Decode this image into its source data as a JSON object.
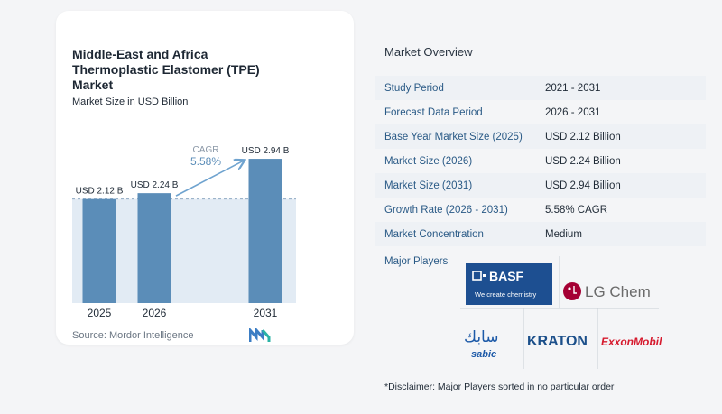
{
  "header": {
    "title": "Middle-East and Africa Thermoplastic Elastomer (TPE) Market",
    "subtitle": "Market Size in USD Billion"
  },
  "source": "Source: Mordor Intelligence",
  "chart_data": {
    "type": "bar",
    "categories": [
      "2025",
      "2026",
      "2031"
    ],
    "values": [
      2.12,
      2.24,
      2.94
    ],
    "data_labels": [
      "USD 2.12 B",
      "USD 2.24 B",
      "USD 2.94 B"
    ],
    "cagr_label": "CAGR",
    "cagr_value": "5.58%",
    "bar_color": "#5b8db8",
    "highlight_color": "#d6e3ef"
  },
  "overview": {
    "title": "Market Overview",
    "rows": [
      {
        "key": "Study Period",
        "value": "2021 - 2031"
      },
      {
        "key": "Forecast Data Period",
        "value": "2026 - 2031"
      },
      {
        "key": "Base Year Market Size (2025)",
        "value": "USD 2.12 Billion"
      },
      {
        "key": "Market Size (2026)",
        "value": "USD 2.24 Billion"
      },
      {
        "key": "Market Size (2031)",
        "value": "USD 2.94 Billion"
      },
      {
        "key": "Growth Rate (2026 - 2031)",
        "value": "5.58% CAGR"
      },
      {
        "key": "Market Concentration",
        "value": "Medium"
      }
    ],
    "players_label": "Major Players",
    "disclaimer": "*Disclaimer: Major Players sorted in no particular order"
  },
  "players": {
    "basf": "BASF",
    "basf_tagline": "We create chemistry",
    "lgchem": "LG Chem",
    "sabic_arabic": "سابك",
    "sabic": "sabic",
    "kraton": "KRATON",
    "exxon": "ExxonMobil"
  }
}
